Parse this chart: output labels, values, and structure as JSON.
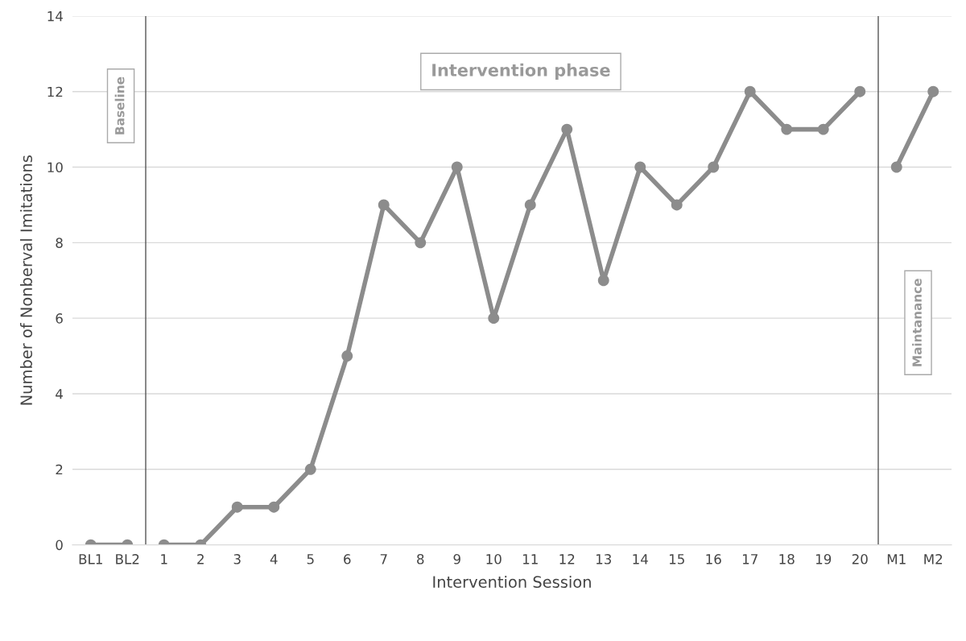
{
  "chart_data": {
    "type": "line",
    "xlabel": "Intervention Session",
    "ylabel": "Number of Nonberval Imitations",
    "categories": [
      "BL1",
      "BL2",
      "1",
      "2",
      "3",
      "4",
      "5",
      "6",
      "7",
      "8",
      "9",
      "10",
      "11",
      "12",
      "13",
      "14",
      "15",
      "16",
      "17",
      "18",
      "19",
      "20",
      "M1",
      "M2"
    ],
    "series": [
      {
        "color": "#8c8c8c",
        "values": [
          0,
          0,
          null,
          null,
          null,
          null,
          null,
          null,
          null,
          null,
          null,
          null,
          null,
          null,
          null,
          null,
          null,
          null,
          null,
          null,
          null,
          null,
          null,
          null
        ]
      },
      {
        "color": "#8c8c8c",
        "values": [
          null,
          null,
          0,
          0,
          1,
          1,
          2,
          5,
          9,
          8,
          10,
          6,
          9,
          11,
          7,
          10,
          9,
          10,
          12,
          11,
          11,
          12,
          null,
          null
        ]
      },
      {
        "color": "#8c8c8c",
        "values": [
          null,
          null,
          null,
          null,
          null,
          null,
          null,
          null,
          null,
          null,
          null,
          null,
          null,
          null,
          null,
          null,
          null,
          null,
          null,
          null,
          null,
          null,
          10,
          12
        ]
      }
    ],
    "ylim": [
      0,
      14
    ],
    "yticks": [
      0,
      2,
      4,
      6,
      8,
      10,
      12,
      14
    ],
    "annotations": [
      "Baseline",
      "Intervention phase",
      "Maintanance"
    ],
    "grid": "y",
    "marker": "circle",
    "line_style": "solid"
  }
}
